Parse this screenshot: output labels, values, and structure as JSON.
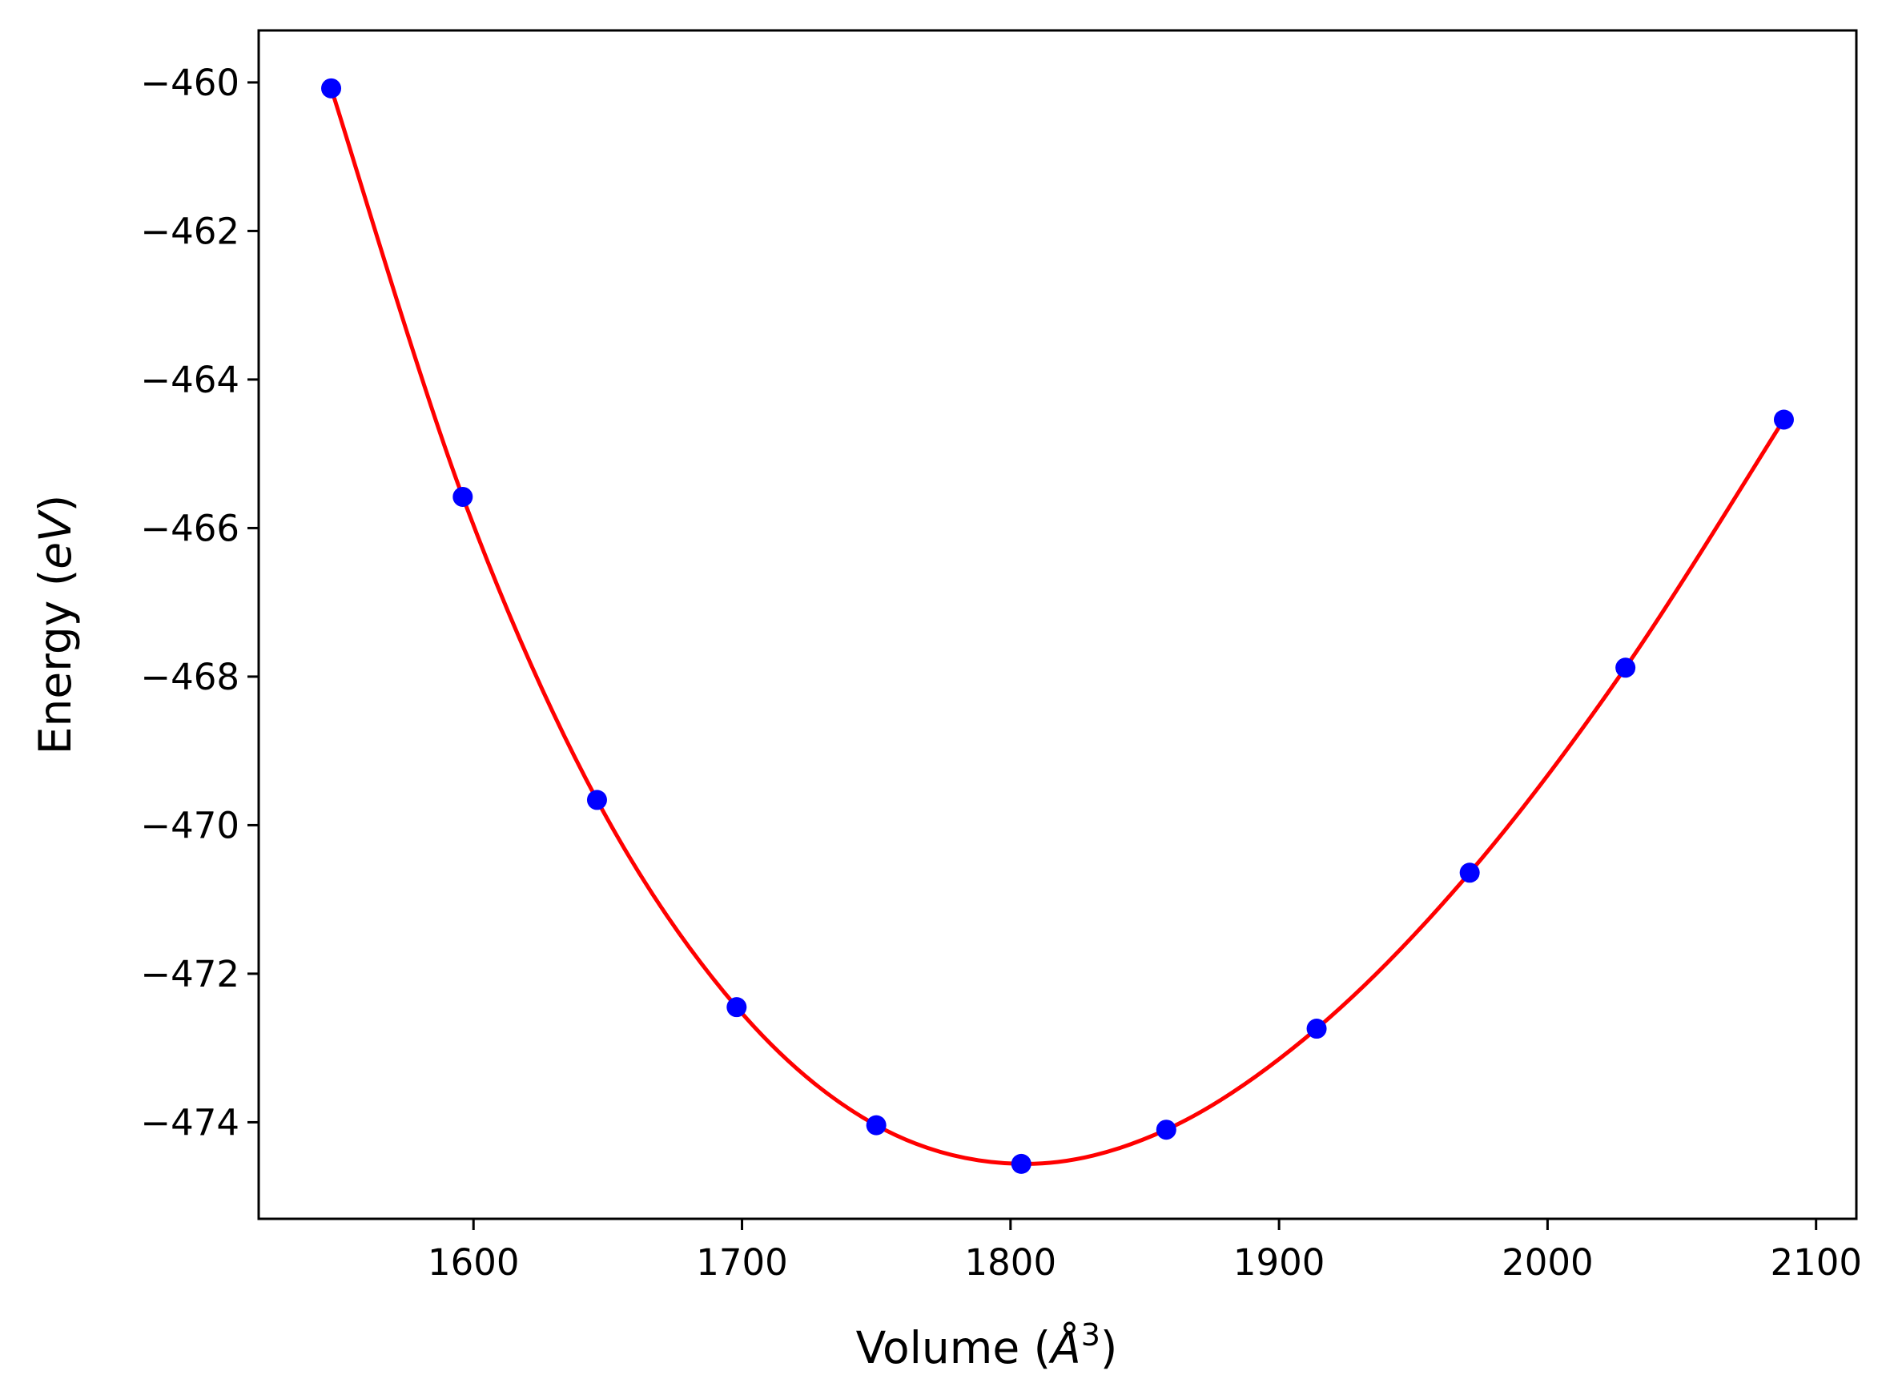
{
  "chart_data": {
    "type": "line",
    "title": "",
    "xlabel": {
      "prefix": "Volume (",
      "symbol": "Å",
      "exponent": "3",
      "suffix": ")"
    },
    "ylabel": {
      "prefix": "Energy (",
      "unit": "eV",
      "suffix": ")"
    },
    "xlim": [
      1520,
      2115
    ],
    "ylim": [
      -475.3,
      -459.3
    ],
    "xticks": [
      1600,
      1700,
      1800,
      1900,
      2000,
      2100
    ],
    "xtick_labels": [
      "1600",
      "1700",
      "1800",
      "1900",
      "2000",
      "2100"
    ],
    "yticks": [
      -460,
      -462,
      -464,
      -466,
      -468,
      -470,
      -472,
      -474
    ],
    "ytick_labels": [
      "−460",
      "−462",
      "−464",
      "−466",
      "−468",
      "−470",
      "−472",
      "−474"
    ],
    "grid": false,
    "series": [
      {
        "kind": "points",
        "color": "#0000ff",
        "x": [
          1547,
          1596,
          1646,
          1698,
          1750,
          1804,
          1858,
          1914,
          1971,
          2029,
          2088
        ],
        "y": [
          -460.08,
          -465.58,
          -469.66,
          -472.45,
          -474.04,
          -474.56,
          -474.1,
          -472.74,
          -470.64,
          -467.88,
          -464.54
        ]
      },
      {
        "kind": "fit",
        "color": "#ff0000",
        "x": [
          1547,
          1596,
          1646,
          1698,
          1750,
          1804,
          1858,
          1914,
          1971,
          2029,
          2088
        ],
        "y": [
          -460.08,
          -465.58,
          -469.66,
          -472.45,
          -474.04,
          -474.56,
          -474.1,
          -472.74,
          -470.64,
          -467.88,
          -464.54
        ]
      }
    ]
  }
}
